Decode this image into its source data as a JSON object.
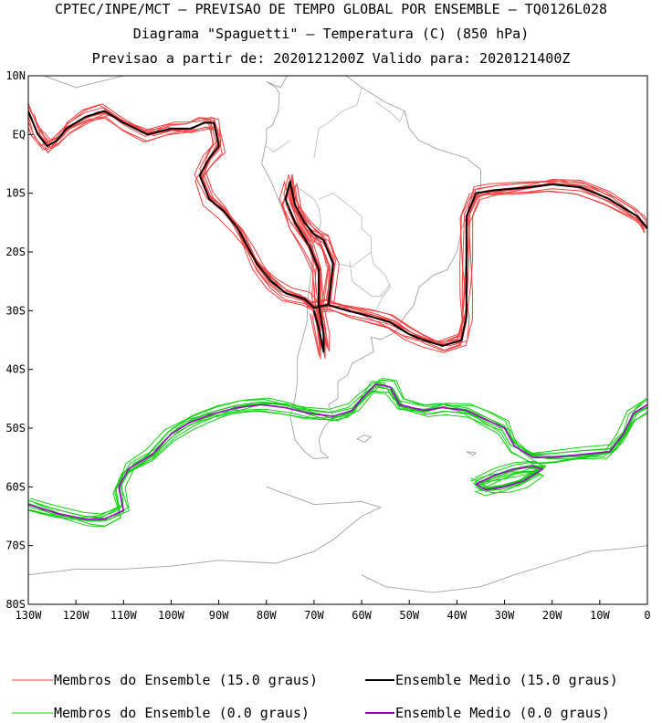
{
  "header": {
    "line1": "CPTEC/INPE/MCT – PREVISAO DE TEMPO GLOBAL POR ENSEMBLE – TQ0126L028",
    "line2": "Diagrama \"Spaguetti\" – Temperatura (C) (850 hPa)",
    "line3": "Previsao a partir de: 2020121200Z  Valido para: 2020121400Z"
  },
  "chart_data": {
    "type": "line",
    "title": "Diagrama \"Spaguetti\" – Temperatura (C) (850 hPa)",
    "xlim": [
      -130,
      0
    ],
    "ylim": [
      -80,
      10
    ],
    "x_tick_values": [
      -130,
      -120,
      -110,
      -100,
      -90,
      -80,
      -70,
      -60,
      -50,
      -40,
      -30,
      -20,
      -10,
      0
    ],
    "x_tick_labels": [
      "130W",
      "120W",
      "110W",
      "100W",
      "90W",
      "80W",
      "70W",
      "60W",
      "50W",
      "40W",
      "30W",
      "20W",
      "10W",
      "0"
    ],
    "y_tick_values": [
      10,
      0,
      -10,
      -20,
      -30,
      -40,
      -50,
      -60,
      -70,
      -80
    ],
    "y_tick_labels": [
      "10N",
      "EQ",
      "10S",
      "20S",
      "30S",
      "40S",
      "50S",
      "60S",
      "70S",
      "80S"
    ],
    "colors": {
      "members_15": "#f04040",
      "mean_15": "#000000",
      "members_0": "#10d010",
      "mean_0": "#a000c8",
      "coast": "#a0a0a0"
    },
    "series": [
      {
        "name": "Ensemble Medio (15.0 graus)",
        "isotherm": 15.0,
        "color": "#000000",
        "segments": [
          [
            [
              -130,
              4
            ],
            [
              -128,
              0
            ],
            [
              -126,
              -2
            ],
            [
              -124,
              -1
            ],
            [
              -122,
              1
            ],
            [
              -118,
              3
            ],
            [
              -114,
              4
            ],
            [
              -110,
              2
            ],
            [
              -105,
              0
            ],
            [
              -100,
              1
            ],
            [
              -96,
              1
            ],
            [
              -93,
              2
            ],
            [
              -91,
              2
            ],
            [
              -90,
              -2
            ],
            [
              -92,
              -4
            ],
            [
              -94,
              -7
            ],
            [
              -92,
              -11
            ],
            [
              -89,
              -13
            ],
            [
              -86,
              -16
            ],
            [
              -84,
              -19
            ],
            [
              -82,
              -22
            ],
            [
              -79,
              -25
            ],
            [
              -76,
              -27
            ],
            [
              -72,
              -28
            ],
            [
              -70,
              -29.5
            ],
            [
              -67,
              -29
            ],
            [
              -63,
              -30
            ],
            [
              -58,
              -31
            ],
            [
              -54,
              -32
            ],
            [
              -50,
              -34
            ],
            [
              -47,
              -35
            ],
            [
              -43,
              -36
            ],
            [
              -39,
              -35
            ],
            [
              -38,
              -31
            ],
            [
              -38,
              -27
            ],
            [
              -38,
              -22
            ],
            [
              -38,
              -14
            ],
            [
              -36,
              -10
            ],
            [
              -32,
              -9.5
            ],
            [
              -25,
              -9
            ],
            [
              -20,
              -8.5
            ],
            [
              -14,
              -9
            ],
            [
              -8,
              -11
            ],
            [
              -2,
              -14
            ],
            [
              0,
              -16
            ]
          ],
          [
            [
              -67,
              -29
            ],
            [
              -66,
              -22
            ],
            [
              -68,
              -18
            ],
            [
              -70,
              -17
            ],
            [
              -72,
              -15
            ],
            [
              -74,
              -12
            ],
            [
              -75,
              -8
            ],
            [
              -76,
              -11
            ],
            [
              -74,
              -15
            ],
            [
              -71,
              -19
            ],
            [
              -69,
              -23
            ],
            [
              -69,
              -29
            ],
            [
              -68,
              -34
            ],
            [
              -68,
              -37
            ],
            [
              -69,
              -33
            ],
            [
              -70,
              -30
            ]
          ]
        ]
      },
      {
        "name": "Ensemble Medio (0.0 graus)",
        "isotherm": 0.0,
        "color": "#a000c8",
        "segments": [
          [
            [
              -130,
              -63
            ],
            [
              -124,
              -64.5
            ],
            [
              -118,
              -65.5
            ],
            [
              -114,
              -65.5
            ],
            [
              -110,
              -64
            ],
            [
              -111,
              -60
            ],
            [
              -109,
              -57
            ],
            [
              -104,
              -54.5
            ],
            [
              -100,
              -51
            ],
            [
              -96,
              -49
            ],
            [
              -91,
              -47.5
            ],
            [
              -86,
              -46.5
            ],
            [
              -81,
              -46
            ],
            [
              -76,
              -46.5
            ],
            [
              -71,
              -47.5
            ],
            [
              -66,
              -48
            ],
            [
              -62,
              -47
            ],
            [
              -60,
              -45
            ],
            [
              -57,
              -42.5
            ],
            [
              -54,
              -43
            ],
            [
              -52,
              -46
            ],
            [
              -47,
              -47
            ],
            [
              -43,
              -46.5
            ],
            [
              -38,
              -47
            ],
            [
              -34,
              -48.5
            ],
            [
              -30,
              -50
            ],
            [
              -28,
              -53
            ],
            [
              -24,
              -55
            ],
            [
              -20,
              -55
            ],
            [
              -14,
              -54.5
            ],
            [
              -8,
              -54
            ],
            [
              -5,
              -51
            ],
            [
              -3,
              -47.5
            ],
            [
              0,
              -46
            ]
          ],
          [
            [
              -36,
              -59.5
            ],
            [
              -32,
              -58
            ],
            [
              -28,
              -57
            ],
            [
              -24,
              -56.5
            ],
            [
              -22,
              -57
            ],
            [
              -26,
              -59
            ],
            [
              -30,
              -60
            ],
            [
              -34,
              -60.5
            ],
            [
              -36,
              -59.5
            ]
          ]
        ]
      }
    ],
    "legend": [
      {
        "label": "Membros do Ensemble (15.0 graus)",
        "color": "#f04040",
        "kind": "member"
      },
      {
        "label": "Ensemble Medio (15.0 graus)",
        "color": "#000000",
        "kind": "mean"
      },
      {
        "label": "Membros do Ensemble (0.0 graus)",
        "color": "#10d010",
        "kind": "member"
      },
      {
        "label": "Ensemble Medio (0.0 graus)",
        "color": "#a000c8",
        "kind": "mean"
      }
    ],
    "legend_position": "bottom",
    "grid": false
  }
}
